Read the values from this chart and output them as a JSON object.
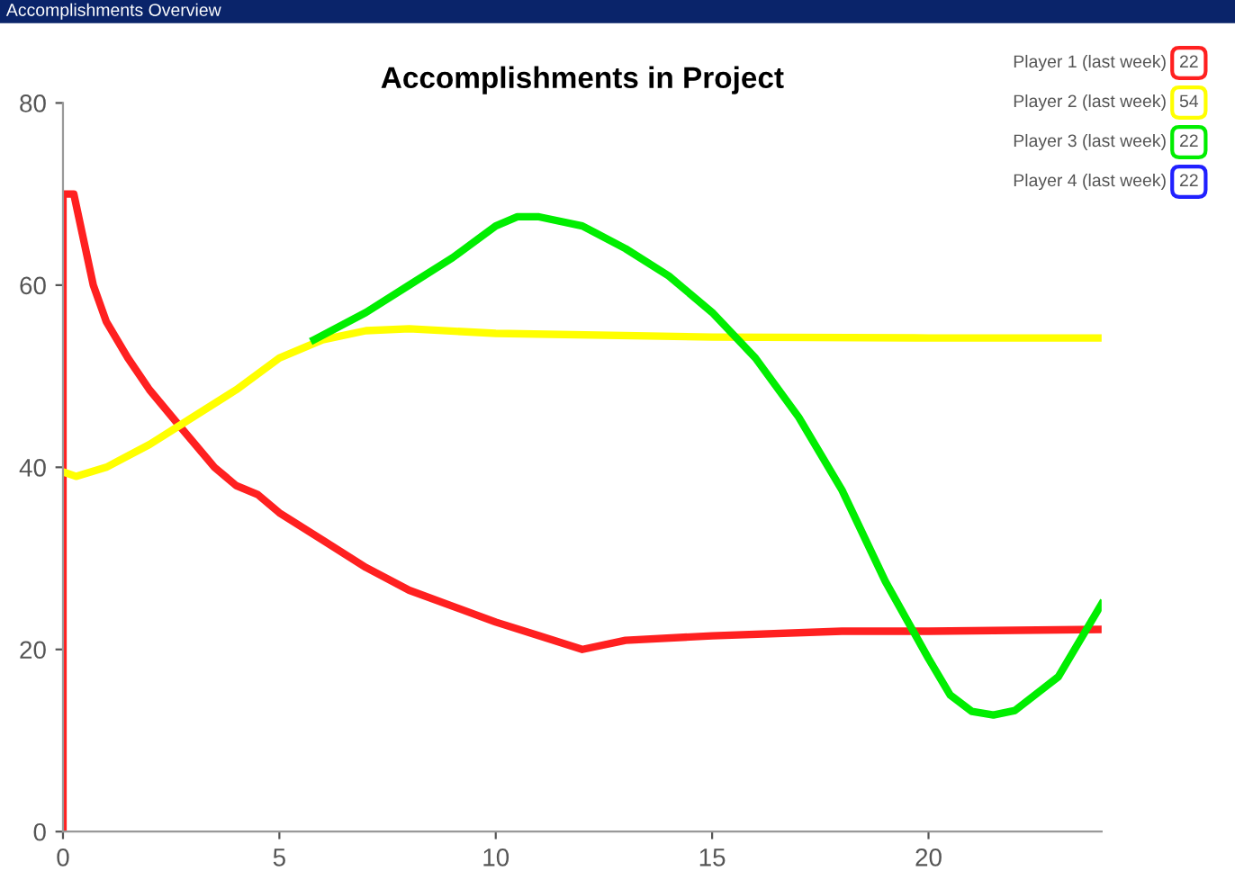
{
  "chart_data": {
    "type": "line",
    "title": "Accomplishments in Project",
    "annotations": [
      "Accomplishments Overview",
      "22",
      "54",
      "22",
      "22"
    ],
    "xlim": [
      0,
      24
    ],
    "xticks": [
      0,
      5,
      10,
      15,
      20
    ],
    "ylim": [
      0,
      80
    ],
    "yticks": [
      0,
      20,
      40,
      60,
      80
    ],
    "grid": false,
    "legend": "top right",
    "marker": "none",
    "line_style": "solid",
    "series": [
      {
        "name": "Player 1 (last week)",
        "color": "#ff2020",
        "x": [
          0,
          0,
          0.25,
          0.7,
          1,
          1.5,
          2,
          2.7,
          3.5,
          4,
          4.5,
          5,
          6,
          7,
          8,
          10,
          11,
          12,
          13,
          15,
          18,
          20,
          24
        ],
        "values": [
          0,
          70,
          70,
          60,
          56,
          52,
          48.5,
          44.5,
          40,
          38,
          37,
          35,
          32,
          29,
          26.5,
          23,
          21.5,
          20,
          21,
          21.5,
          22,
          22,
          22.2
        ]
      },
      {
        "name": "Player 2 (last week)",
        "color": "#ffff00",
        "x": [
          0,
          0.3,
          1,
          2,
          3,
          4,
          5,
          6,
          7,
          8,
          10,
          15,
          20,
          24
        ],
        "values": [
          39.5,
          39,
          40,
          42.5,
          45.5,
          48.5,
          52,
          54,
          55,
          55.2,
          54.7,
          54.3,
          54.2,
          54.2
        ]
      },
      {
        "name": "Player 3 (last week)",
        "color": "#00ee00",
        "x": [
          5.8,
          7,
          8,
          9,
          10,
          10.5,
          11,
          12,
          13,
          14,
          15,
          16,
          17,
          18,
          19,
          20,
          20.5,
          21,
          21.5,
          22,
          23,
          24
        ],
        "values": [
          54,
          57,
          60,
          63,
          66.5,
          67.5,
          67.5,
          66.5,
          64,
          61,
          57,
          52,
          45.5,
          37.5,
          27.5,
          19,
          15,
          13.2,
          12.8,
          13.3,
          17,
          25
        ]
      },
      {
        "name": "Player 4 (last week)",
        "color": "#2020ff"
      }
    ]
  }
}
